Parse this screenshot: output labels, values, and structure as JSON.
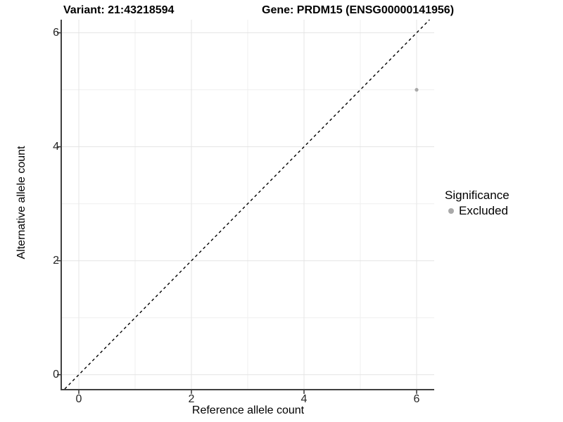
{
  "chart_data": {
    "type": "scatter",
    "title_left": "Variant: 21:43218594",
    "title_right": "Gene: PRDM15 (ENSG00000141956)",
    "xlabel": "Reference allele count",
    "ylabel": "Alternative allele count",
    "xlim": [
      -0.3,
      6.3125
    ],
    "ylim": [
      -0.25,
      6.23
    ],
    "x_major_ticks": [
      0,
      2,
      4,
      6
    ],
    "y_major_ticks": [
      0,
      2,
      4,
      6
    ],
    "x_minor_ticks": [
      1,
      3,
      5
    ],
    "y_minor_ticks": [
      1,
      3,
      5
    ],
    "grid": true,
    "points": [
      {
        "x": 6,
        "y": 5,
        "series": "Excluded"
      }
    ],
    "abline": {
      "slope": 1,
      "intercept": 0,
      "style": "dashed"
    },
    "legend": {
      "title": "Significance",
      "position": "right",
      "entries": [
        {
          "label": "Excluded",
          "color": "#a9a9a9"
        }
      ]
    },
    "colors": {
      "point": "#a9a9a9",
      "grid_major": "#e4e4e4",
      "grid_minor": "#efefef",
      "axis_line": "#404040",
      "tick_mark": "#333333",
      "abline": "#000000",
      "background": "#ffffff"
    }
  }
}
